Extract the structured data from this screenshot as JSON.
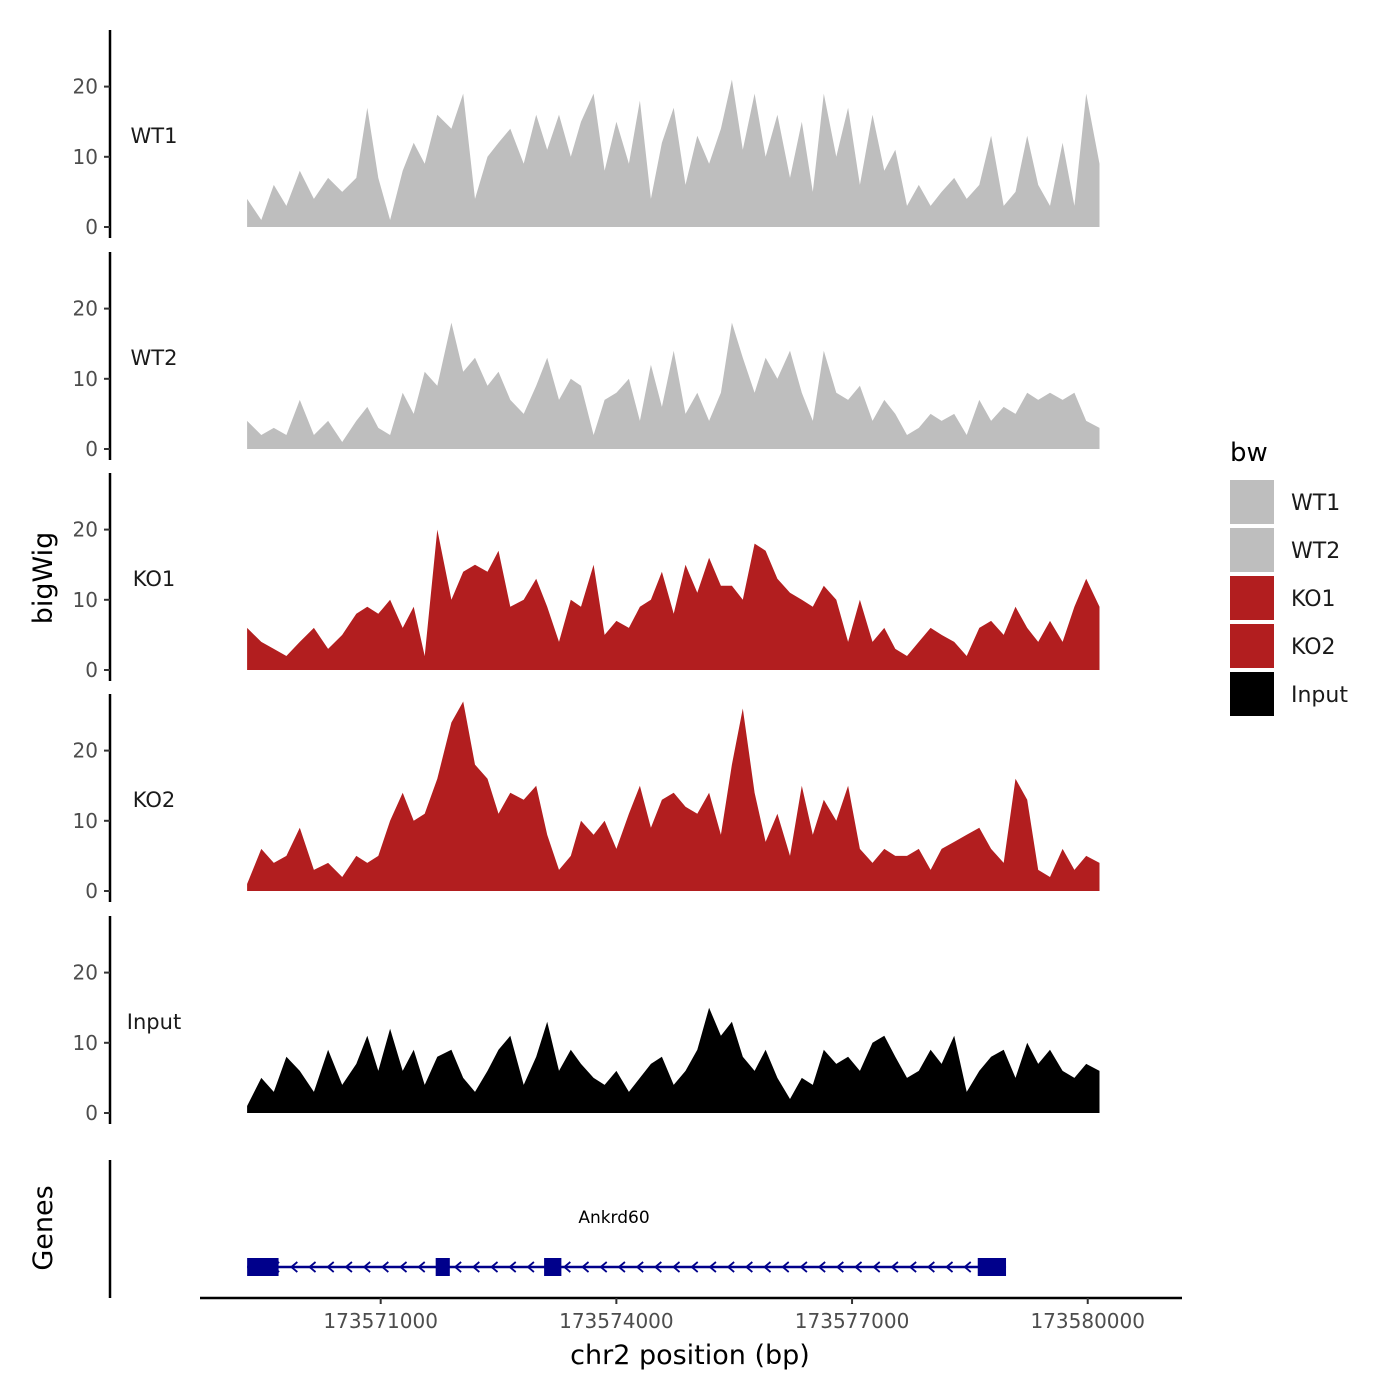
{
  "chart_data": {
    "type": "area",
    "ylabel": "bigWig",
    "xlabel": "chr2 position (bp)",
    "xlim": [
      173568700,
      173581200
    ],
    "ylim": [
      0,
      28
    ],
    "y_ticks": [
      0,
      10,
      20
    ],
    "x_ticks": [
      173571000,
      173574000,
      173577000,
      173580000
    ],
    "x_tick_labels": [
      "173571000",
      "173574000",
      "173577000",
      "173580000"
    ],
    "legend": {
      "title": "bw",
      "position": "right",
      "entries": [
        {
          "label": "WT1",
          "color": "#bebebe"
        },
        {
          "label": "WT2",
          "color": "#bebebe"
        },
        {
          "label": "KO1",
          "color": "#b21e1f"
        },
        {
          "label": "KO2",
          "color": "#b21e1f"
        },
        {
          "label": "Input",
          "color": "#000000"
        }
      ]
    },
    "series": [
      {
        "name": "WT1",
        "color": "#bebebe",
        "x": [
          173569300,
          173569480,
          173569640,
          173569800,
          173569970,
          173570150,
          173570330,
          173570510,
          173570690,
          173570830,
          173570970,
          173571120,
          173571280,
          173571420,
          173571560,
          173571720,
          173571900,
          173572050,
          173572200,
          173572360,
          173572500,
          173572650,
          173572820,
          173572980,
          173573120,
          173573270,
          173573420,
          173573550,
          173573710,
          173573850,
          173574000,
          173574160,
          173574300,
          173574440,
          173574580,
          173574730,
          173574880,
          173575030,
          173575180,
          173575330,
          173575470,
          173575610,
          173575760,
          173575900,
          173576050,
          173576210,
          173576360,
          173576500,
          173576640,
          173576800,
          173576950,
          173577100,
          173577260,
          173577410,
          173577550,
          173577700,
          173577850,
          173578000,
          173578140,
          173578300,
          173578460,
          173578620,
          173578770,
          173578930,
          173579080,
          173579230,
          173579370,
          173579520,
          173579680,
          173579830,
          173579980,
          173580150
        ],
        "y": [
          4,
          1,
          6,
          3,
          8,
          4,
          7,
          5,
          7,
          17,
          7,
          1,
          8,
          12,
          9,
          16,
          14,
          19,
          4,
          10,
          12,
          14,
          9,
          16,
          11,
          16,
          10,
          15,
          19,
          8,
          15,
          9,
          18,
          4,
          12,
          17,
          6,
          13,
          9,
          14,
          21,
          11,
          19,
          10,
          16,
          7,
          15,
          5,
          19,
          10,
          17,
          6,
          16,
          8,
          11,
          3,
          6,
          3,
          5,
          7,
          4,
          6,
          13,
          3,
          5,
          13,
          6,
          3,
          12,
          3,
          19,
          9
        ]
      },
      {
        "name": "WT2",
        "color": "#bebebe",
        "x": [
          173569300,
          173569480,
          173569640,
          173569800,
          173569970,
          173570150,
          173570330,
          173570510,
          173570690,
          173570830,
          173570970,
          173571120,
          173571280,
          173571420,
          173571560,
          173571720,
          173571900,
          173572050,
          173572200,
          173572360,
          173572500,
          173572650,
          173572820,
          173572980,
          173573120,
          173573270,
          173573420,
          173573550,
          173573710,
          173573850,
          173574000,
          173574160,
          173574300,
          173574440,
          173574580,
          173574730,
          173574880,
          173575030,
          173575180,
          173575330,
          173575470,
          173575610,
          173575760,
          173575900,
          173576050,
          173576210,
          173576360,
          173576500,
          173576640,
          173576800,
          173576950,
          173577100,
          173577260,
          173577410,
          173577550,
          173577700,
          173577850,
          173578000,
          173578140,
          173578300,
          173578460,
          173578620,
          173578770,
          173578930,
          173579080,
          173579230,
          173579370,
          173579520,
          173579680,
          173579830,
          173579980,
          173580150
        ],
        "y": [
          4,
          2,
          3,
          2,
          7,
          2,
          4,
          1,
          4,
          6,
          3,
          2,
          8,
          5,
          11,
          9,
          18,
          11,
          13,
          9,
          11,
          7,
          5,
          9,
          13,
          7,
          10,
          9,
          2,
          7,
          8,
          10,
          4,
          12,
          6,
          14,
          5,
          8,
          4,
          8,
          18,
          13,
          8,
          13,
          10,
          14,
          8,
          4,
          14,
          8,
          7,
          9,
          4,
          7,
          5,
          2,
          3,
          5,
          4,
          5,
          2,
          7,
          4,
          6,
          5,
          8,
          7,
          8,
          7,
          8,
          4,
          3
        ]
      },
      {
        "name": "KO1",
        "color": "#b21e1f",
        "x": [
          173569300,
          173569480,
          173569640,
          173569800,
          173569970,
          173570150,
          173570330,
          173570510,
          173570690,
          173570830,
          173570970,
          173571120,
          173571280,
          173571420,
          173571560,
          173571720,
          173571900,
          173572050,
          173572200,
          173572360,
          173572500,
          173572650,
          173572820,
          173572980,
          173573120,
          173573270,
          173573420,
          173573550,
          173573710,
          173573850,
          173574000,
          173574160,
          173574300,
          173574440,
          173574580,
          173574730,
          173574880,
          173575030,
          173575180,
          173575330,
          173575470,
          173575610,
          173575760,
          173575900,
          173576050,
          173576210,
          173576360,
          173576500,
          173576640,
          173576800,
          173576950,
          173577100,
          173577260,
          173577410,
          173577550,
          173577700,
          173577850,
          173578000,
          173578140,
          173578300,
          173578460,
          173578620,
          173578770,
          173578930,
          173579080,
          173579230,
          173579370,
          173579520,
          173579680,
          173579830,
          173579980,
          173580150
        ],
        "y": [
          6,
          4,
          3,
          2,
          4,
          6,
          3,
          5,
          8,
          9,
          8,
          10,
          6,
          9,
          2,
          20,
          10,
          14,
          15,
          14,
          17,
          9,
          10,
          13,
          9,
          4,
          10,
          9,
          15,
          5,
          7,
          6,
          9,
          10,
          14,
          8,
          15,
          11,
          16,
          12,
          12,
          10,
          18,
          17,
          13,
          11,
          10,
          9,
          12,
          10,
          4,
          10,
          4,
          6,
          3,
          2,
          4,
          6,
          5,
          4,
          2,
          6,
          7,
          5,
          9,
          6,
          4,
          7,
          4,
          9,
          13,
          9
        ]
      },
      {
        "name": "KO2",
        "color": "#b21e1f",
        "x": [
          173569300,
          173569480,
          173569640,
          173569800,
          173569970,
          173570150,
          173570330,
          173570510,
          173570690,
          173570830,
          173570970,
          173571120,
          173571280,
          173571420,
          173571560,
          173571720,
          173571900,
          173572050,
          173572200,
          173572360,
          173572500,
          173572650,
          173572820,
          173572980,
          173573120,
          173573270,
          173573420,
          173573550,
          173573710,
          173573850,
          173574000,
          173574160,
          173574300,
          173574440,
          173574580,
          173574730,
          173574880,
          173575030,
          173575180,
          173575330,
          173575470,
          173575610,
          173575760,
          173575900,
          173576050,
          173576210,
          173576360,
          173576500,
          173576640,
          173576800,
          173576950,
          173577100,
          173577260,
          173577410,
          173577550,
          173577700,
          173577850,
          173578000,
          173578140,
          173578300,
          173578460,
          173578620,
          173578770,
          173578930,
          173579080,
          173579230,
          173579370,
          173579520,
          173579680,
          173579830,
          173579980,
          173580150
        ],
        "y": [
          1,
          6,
          4,
          5,
          9,
          3,
          4,
          2,
          5,
          4,
          5,
          10,
          14,
          10,
          11,
          16,
          24,
          27,
          18,
          16,
          11,
          14,
          13,
          15,
          8,
          3,
          5,
          10,
          8,
          10,
          6,
          11,
          15,
          9,
          13,
          14,
          12,
          11,
          14,
          8,
          18,
          26,
          14,
          7,
          11,
          5,
          15,
          8,
          13,
          10,
          15,
          6,
          4,
          6,
          5,
          5,
          6,
          3,
          6,
          7,
          8,
          9,
          6,
          4,
          16,
          13,
          3,
          2,
          6,
          3,
          5,
          4
        ]
      },
      {
        "name": "Input",
        "color": "#000000",
        "x": [
          173569300,
          173569480,
          173569640,
          173569800,
          173569970,
          173570150,
          173570330,
          173570510,
          173570690,
          173570830,
          173570970,
          173571120,
          173571280,
          173571420,
          173571560,
          173571720,
          173571900,
          173572050,
          173572200,
          173572360,
          173572500,
          173572650,
          173572820,
          173572980,
          173573120,
          173573270,
          173573420,
          173573550,
          173573710,
          173573850,
          173574000,
          173574160,
          173574300,
          173574440,
          173574580,
          173574730,
          173574880,
          173575030,
          173575180,
          173575330,
          173575470,
          173575610,
          173575760,
          173575900,
          173576050,
          173576210,
          173576360,
          173576500,
          173576640,
          173576800,
          173576950,
          173577100,
          173577260,
          173577410,
          173577550,
          173577700,
          173577850,
          173578000,
          173578140,
          173578300,
          173578460,
          173578620,
          173578770,
          173578930,
          173579080,
          173579230,
          173579370,
          173579520,
          173579680,
          173579830,
          173579980,
          173580150
        ],
        "y": [
          1,
          5,
          3,
          8,
          6,
          3,
          9,
          4,
          7,
          11,
          6,
          12,
          6,
          9,
          4,
          8,
          9,
          5,
          3,
          6,
          9,
          11,
          4,
          8,
          13,
          6,
          9,
          7,
          5,
          4,
          6,
          3,
          5,
          7,
          8,
          4,
          6,
          9,
          15,
          11,
          13,
          8,
          6,
          9,
          5,
          2,
          5,
          4,
          9,
          7,
          8,
          6,
          10,
          11,
          8,
          5,
          6,
          9,
          7,
          11,
          3,
          6,
          8,
          9,
          5,
          10,
          7,
          9,
          6,
          5,
          7,
          6
        ]
      }
    ],
    "genes": {
      "track_label": "Genes",
      "name": "Ankrd60",
      "start": 173569300,
      "end": 173578960,
      "strand": "-",
      "exons": [
        {
          "start": 173569300,
          "end": 173569700
        },
        {
          "start": 173571700,
          "end": 173571880
        },
        {
          "start": 173573080,
          "end": 173573300
        },
        {
          "start": 173578600,
          "end": 173578960
        }
      ]
    }
  }
}
